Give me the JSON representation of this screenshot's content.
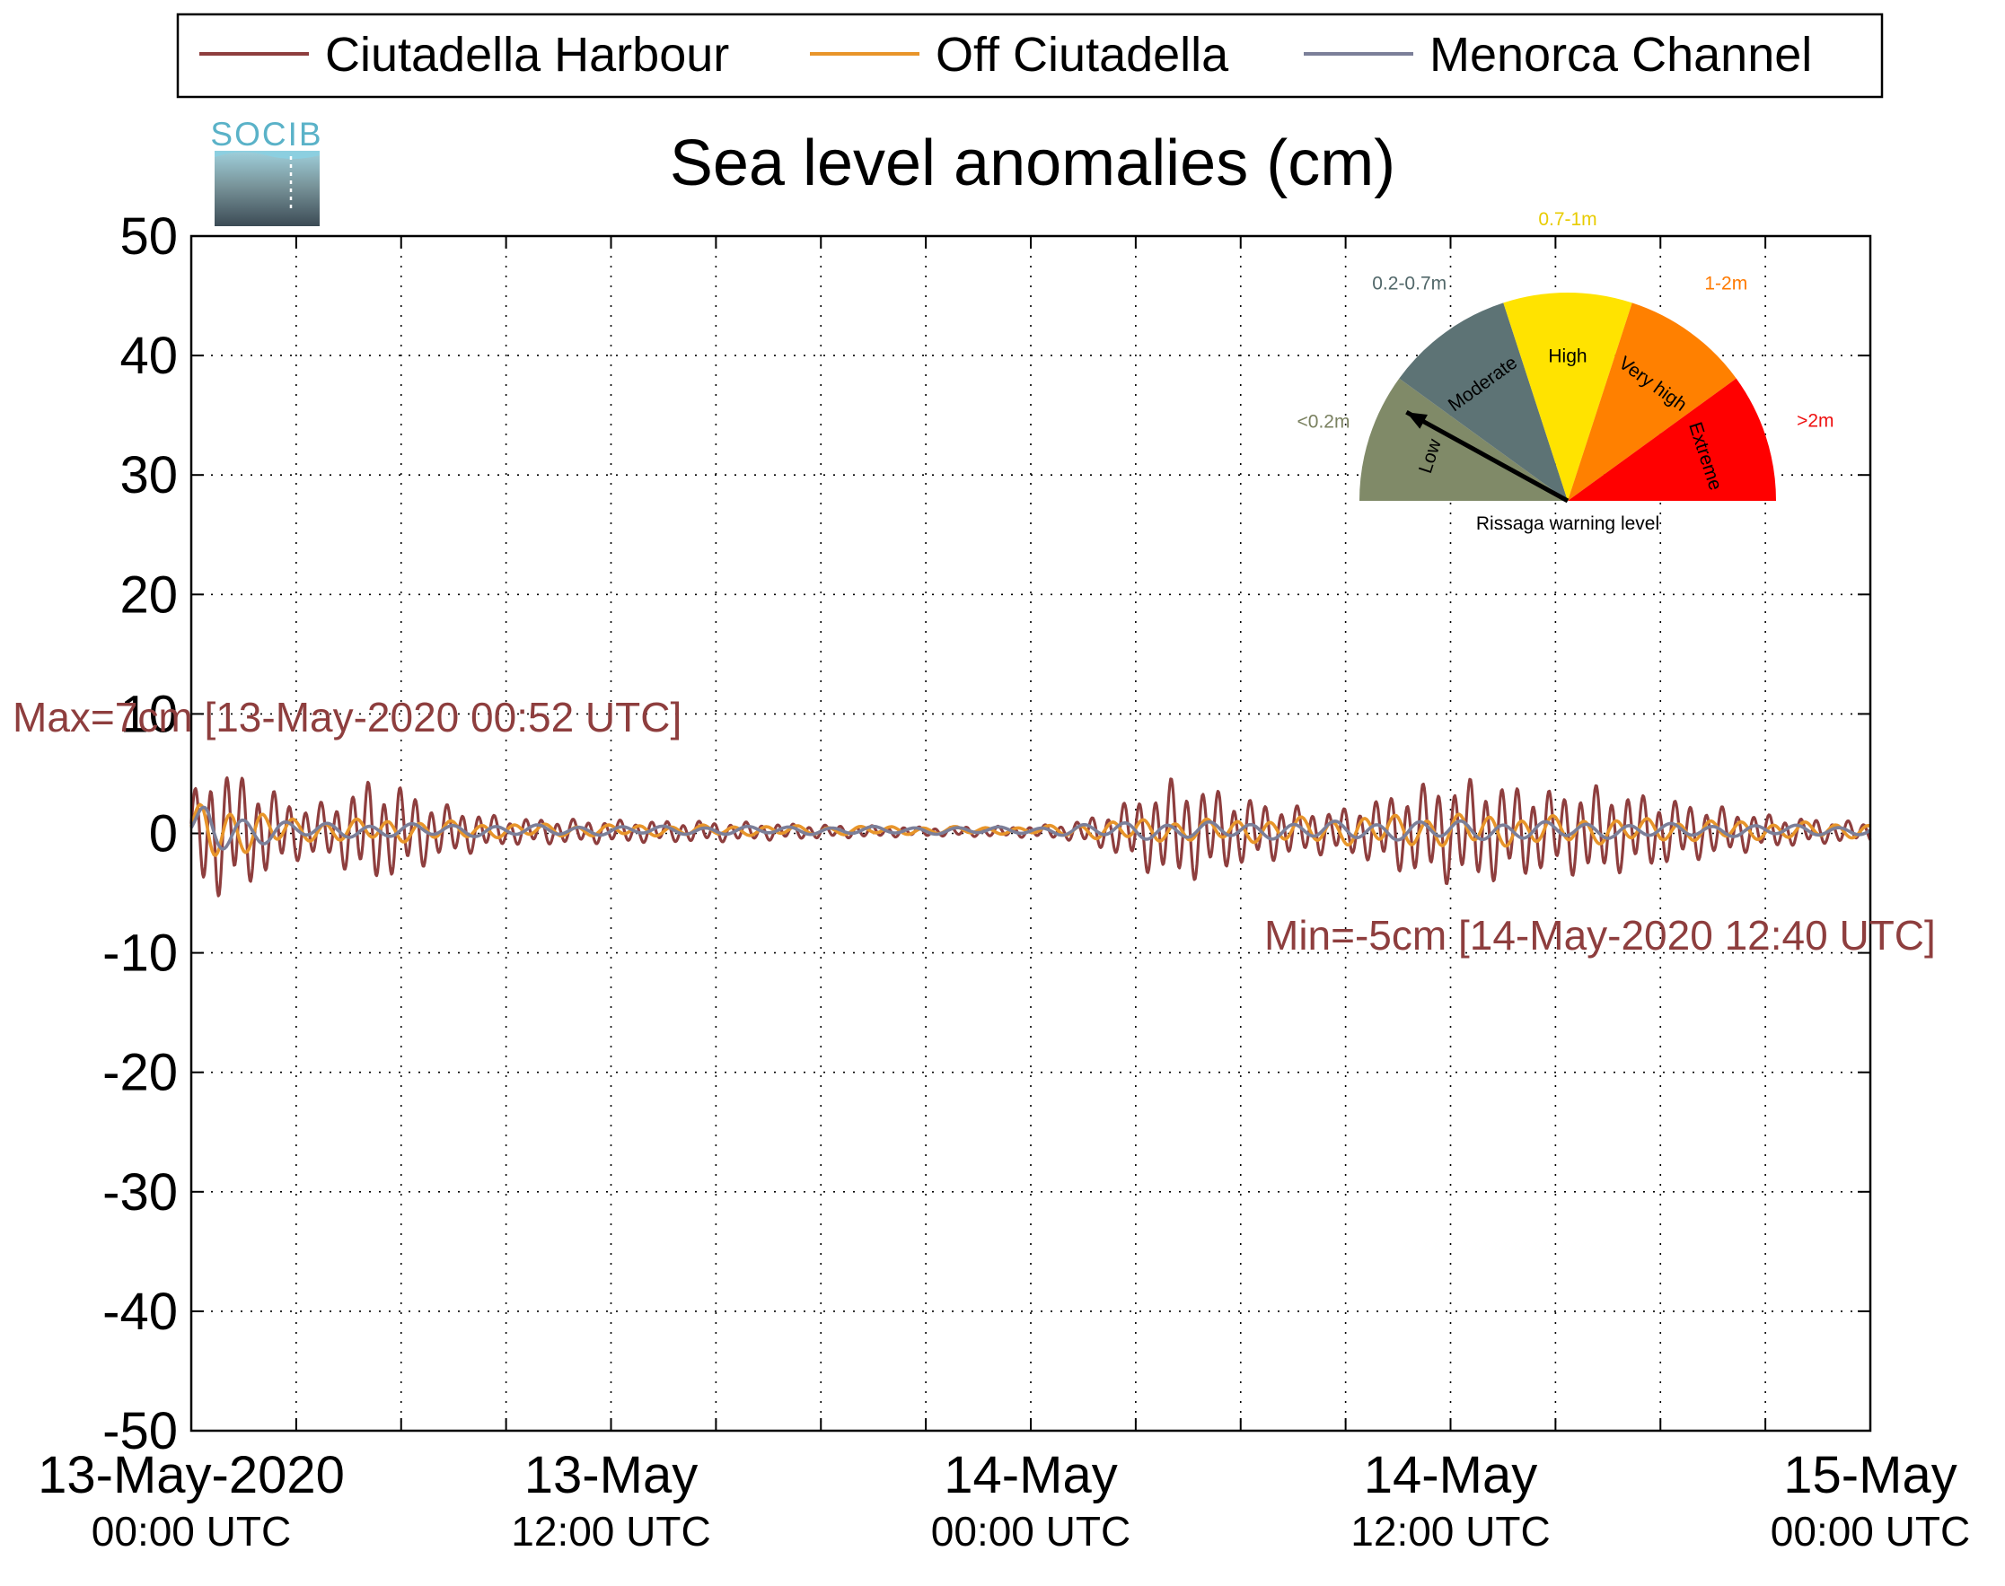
{
  "chart_data": {
    "type": "line",
    "title": "Sea level anomalies (cm)",
    "logo_text": "SOCIB",
    "ylim": [
      -50,
      50
    ],
    "y_ticks": [
      50,
      40,
      30,
      20,
      10,
      0,
      -10,
      -20,
      -30,
      -40,
      -50
    ],
    "y_tick_labels": [
      "50",
      "40",
      "30",
      "20",
      "10",
      "0",
      "-10",
      "-20",
      "-30",
      "-40",
      "-50"
    ],
    "x_range": [
      "2020-05-13 00:00",
      "2020-05-15 00:00"
    ],
    "x_minor_tick_hours": 3,
    "x_tick_labels": [
      {
        "hour": 0,
        "line1": "13-May-2020",
        "line2": "00:00 UTC"
      },
      {
        "hour": 12,
        "line1": "13-May",
        "line2": "12:00 UTC"
      },
      {
        "hour": 24,
        "line1": "14-May",
        "line2": "00:00 UTC"
      },
      {
        "hour": 36,
        "line1": "14-May",
        "line2": "12:00 UTC"
      },
      {
        "hour": 48,
        "line1": "15-May",
        "line2": "00:00 UTC"
      }
    ],
    "grid": true,
    "legend_position": "top",
    "series": [
      {
        "name": "Ciutadella Harbour",
        "color": "#8e3e3e",
        "envelope_hours": [
          0,
          0.5,
          1.5,
          3,
          4,
          5,
          6,
          7,
          9,
          12,
          15,
          18,
          21,
          24,
          25,
          26,
          27,
          28,
          29,
          30,
          31,
          32,
          33,
          34,
          35,
          36,
          37,
          38,
          39,
          40,
          41,
          42,
          43,
          44,
          45,
          46,
          47,
          48
        ],
        "envelope_cm": [
          3,
          6,
          5,
          2.5,
          2.5,
          4.5,
          4,
          2.5,
          1.2,
          1,
          0.9,
          0.6,
          0.4,
          0.5,
          0.7,
          1.5,
          3,
          4.5,
          4,
          3,
          2.5,
          2,
          2,
          3,
          4,
          4.5,
          4.5,
          4,
          3.5,
          4,
          3.5,
          3,
          2.5,
          2,
          1.5,
          1.2,
          1,
          0.8
        ]
      },
      {
        "name": "Off Ciutadella",
        "color": "#e8952a",
        "envelope_hours": [
          0,
          0.5,
          1.5,
          3,
          6,
          9,
          12,
          18,
          24,
          27,
          30,
          36,
          42,
          48
        ],
        "envelope_cm": [
          1.5,
          3,
          2,
          1,
          1,
          0.6,
          0.5,
          0.4,
          0.3,
          1,
          1,
          1.5,
          1,
          0.6
        ]
      },
      {
        "name": "Menorca Channel",
        "color": "#7b7f99",
        "envelope_hours": [
          0,
          0.5,
          1.5,
          3,
          6,
          12,
          24,
          27,
          30,
          36,
          42,
          48
        ],
        "envelope_cm": [
          1,
          2.5,
          1.5,
          0.7,
          0.6,
          0.4,
          0.3,
          0.8,
          0.7,
          0.9,
          0.6,
          0.4
        ]
      }
    ],
    "annotations": {
      "max": {
        "text": "Max=7cm [13-May-2020 00:52 UTC]",
        "color": "#8e3e3e",
        "value_cm": 7
      },
      "min": {
        "text": "Min=-5cm [14-May-2020 12:40 UTC]",
        "color": "#8e3e3e",
        "value_cm": -5
      }
    },
    "gauge": {
      "caption": "Rissaga warning level",
      "current_level": "Low",
      "levels": [
        {
          "name": "Low",
          "range": "<0.2m",
          "color": "#808a68",
          "label_color": "#7a8160"
        },
        {
          "name": "Moderate",
          "range": "0.2-0.7m",
          "color": "#5d7375",
          "label_color": "#52686a"
        },
        {
          "name": "High",
          "range": "0.7-1m",
          "color": "#ffe300",
          "label_color": "#e8cc00"
        },
        {
          "name": "Very high",
          "range": "1-2m",
          "color": "#ff8000",
          "label_color": "#ff7a00"
        },
        {
          "name": "Extreme",
          "range": ">2m",
          "color": "#ff0000",
          "label_color": "#ee1111"
        }
      ]
    }
  }
}
